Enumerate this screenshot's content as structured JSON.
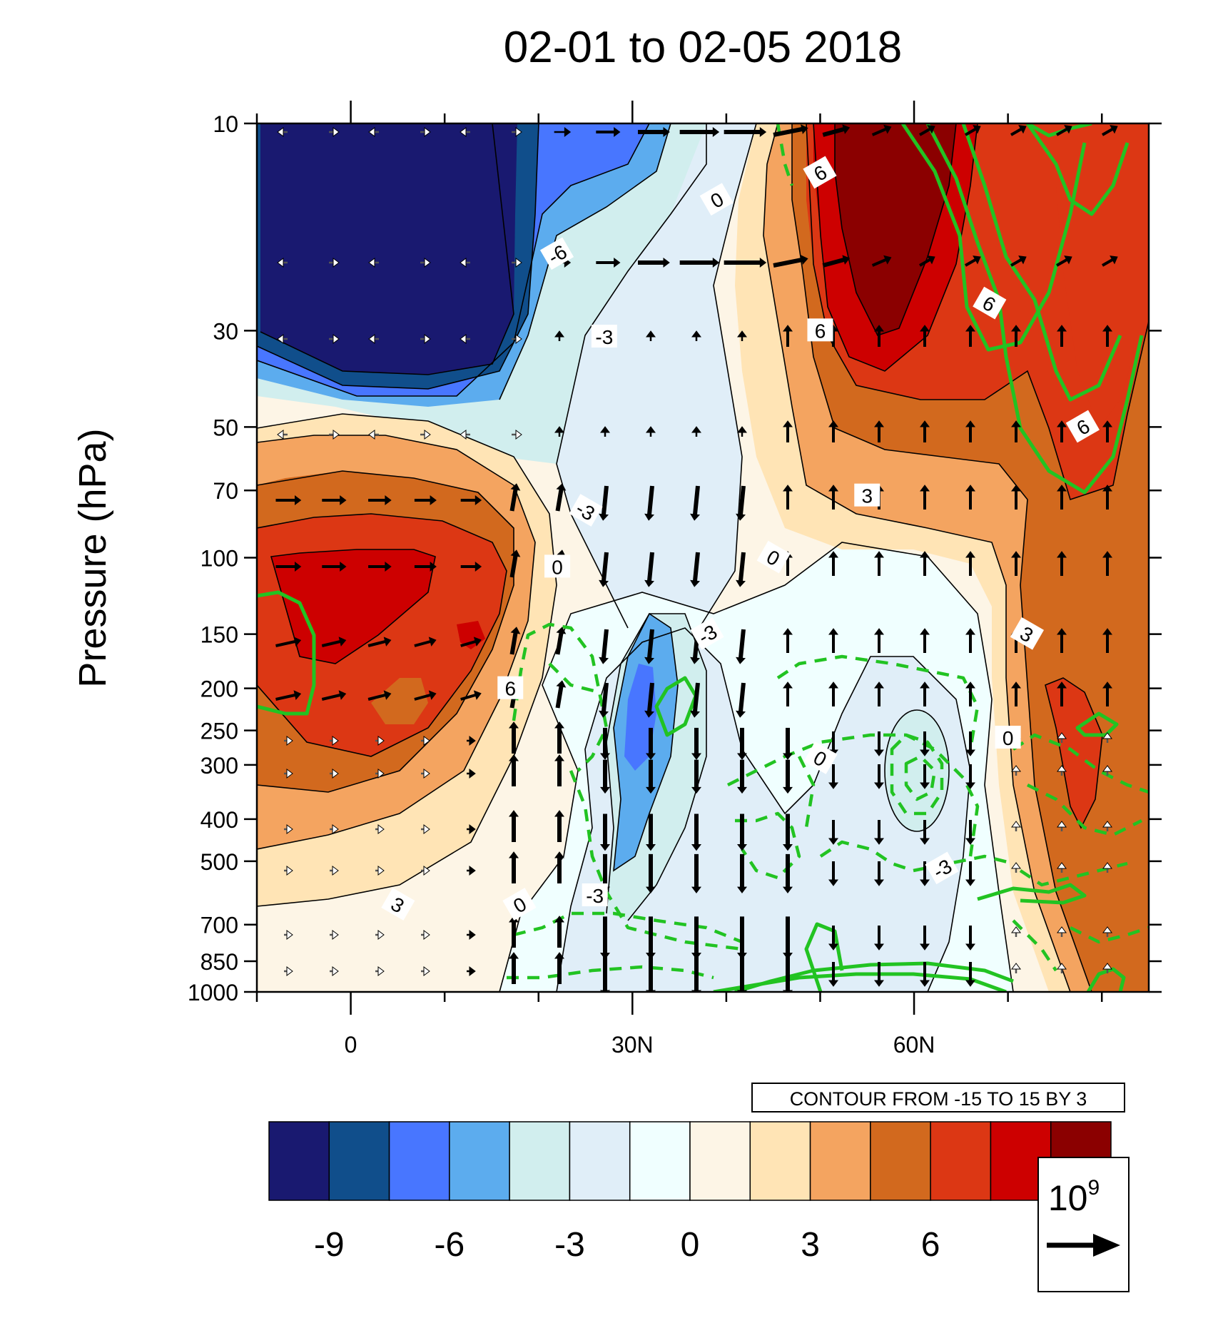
{
  "chart_data": {
    "type": "heatmap",
    "title": "02-01 to 02-05 2018",
    "ylabel": "Pressure (hPa)",
    "xlabel": "",
    "y_scale": "log",
    "x_ticks": [
      {
        "value": 0,
        "label": "0"
      },
      {
        "value": 30,
        "label": "30N"
      },
      {
        "value": 60,
        "label": "60N"
      }
    ],
    "xlim": [
      -10,
      85
    ],
    "y_ticks": [
      {
        "value": 10,
        "label": "10"
      },
      {
        "value": 30,
        "label": "30"
      },
      {
        "value": 50,
        "label": "50"
      },
      {
        "value": 70,
        "label": "70"
      },
      {
        "value": 100,
        "label": "100"
      },
      {
        "value": 150,
        "label": "150"
      },
      {
        "value": 200,
        "label": "200"
      },
      {
        "value": 250,
        "label": "250"
      },
      {
        "value": 300,
        "label": "300"
      },
      {
        "value": 400,
        "label": "400"
      },
      {
        "value": 500,
        "label": "500"
      },
      {
        "value": 700,
        "label": "700"
      },
      {
        "value": 850,
        "label": "850"
      },
      {
        "value": 1000,
        "label": "1000"
      }
    ],
    "ylim": [
      10,
      1000
    ],
    "contour_info": "CONTOUR FROM -15 TO 15 BY 3",
    "colorbar": {
      "colors": [
        "#191970",
        "#104E8B",
        "#4876FF",
        "#5CACEE",
        "#D1EEEE",
        "#E0EEF8",
        "#F0FFFF",
        "#FDF5E6",
        "#FFE4B5",
        "#F4A460",
        "#D2691E",
        "#DC3714",
        "#CD0000",
        "#8B0000"
      ],
      "labels": [
        "-9",
        "-6",
        "-3",
        "0",
        "3",
        "6"
      ]
    },
    "vector_reference": "10",
    "vector_reference_exp": "9",
    "contour_labels": [
      {
        "x": 22,
        "p": 20,
        "text": "-6"
      },
      {
        "x": 27,
        "p": 31,
        "text": "-3"
      },
      {
        "x": 25,
        "p": 78,
        "text": "-3"
      },
      {
        "x": 39,
        "p": 15,
        "text": "0"
      },
      {
        "x": 22,
        "p": 105,
        "text": "0"
      },
      {
        "x": 45,
        "p": 100,
        "text": "0"
      },
      {
        "x": 38,
        "p": 150,
        "text": "-3"
      },
      {
        "x": 55,
        "p": 72,
        "text": "3"
      },
      {
        "x": 72,
        "p": 150,
        "text": "3"
      },
      {
        "x": 50,
        "p": 13,
        "text": "6"
      },
      {
        "x": 50,
        "p": 30,
        "text": "6"
      },
      {
        "x": 68,
        "p": 26,
        "text": "6"
      },
      {
        "x": 78,
        "p": 50,
        "text": "6"
      },
      {
        "x": 17,
        "p": 200,
        "text": "6"
      },
      {
        "x": 5,
        "p": 630,
        "text": "3"
      },
      {
        "x": 18,
        "p": 630,
        "text": "0"
      },
      {
        "x": 26,
        "p": 600,
        "text": "-3"
      },
      {
        "x": 50,
        "p": 290,
        "text": "0"
      },
      {
        "x": 63,
        "p": 520,
        "text": "-3"
      },
      {
        "x": 70,
        "p": 260,
        "text": "0"
      }
    ]
  }
}
